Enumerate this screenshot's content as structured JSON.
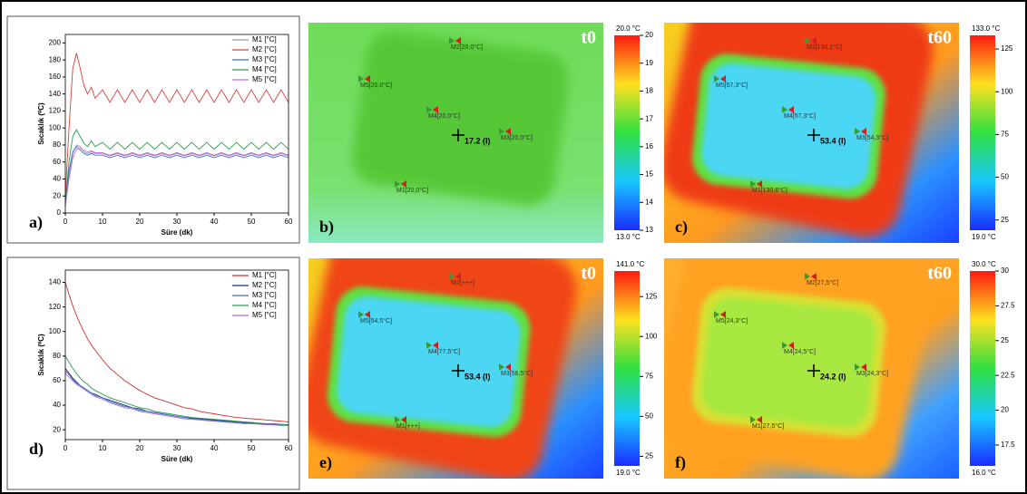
{
  "chart_data": [
    {
      "type": "line",
      "panel_label": "a)",
      "x_label": "Süre (dk)",
      "y_label": "Sıcaklık (⁰C)",
      "x": [
        0,
        1,
        2,
        3,
        4,
        5,
        6,
        7,
        8,
        10,
        12,
        14,
        16,
        18,
        20,
        22,
        24,
        26,
        28,
        30,
        32,
        34,
        36,
        38,
        40,
        42,
        44,
        46,
        48,
        50,
        52,
        54,
        56,
        58,
        60
      ],
      "xlim": [
        0,
        60
      ],
      "xticks": [
        0,
        10,
        20,
        30,
        40,
        50,
        60
      ],
      "ylim": [
        0,
        210
      ],
      "yticks": [
        0,
        20,
        40,
        60,
        80,
        100,
        120,
        140,
        160,
        180,
        200
      ],
      "legend": "upper right",
      "series": [
        {
          "name": "M1 [°C]",
          "color": "#9a8fb8",
          "values": [
            10,
            45,
            70,
            80,
            78,
            72,
            70,
            72,
            70,
            70,
            67,
            70,
            67,
            70,
            67,
            70,
            67,
            70,
            67,
            70,
            67,
            70,
            67,
            70,
            67,
            70,
            67,
            70,
            67,
            70,
            67,
            70,
            67,
            70,
            67
          ]
        },
        {
          "name": "M2 [°C]",
          "color": "#e0403a",
          "values": [
            20,
            100,
            170,
            188,
            170,
            150,
            140,
            148,
            135,
            145,
            130,
            145,
            130,
            145,
            130,
            145,
            130,
            145,
            130,
            145,
            130,
            145,
            130,
            145,
            130,
            145,
            130,
            145,
            130,
            145,
            130,
            145,
            130,
            145,
            130
          ]
        },
        {
          "name": "M3 [°C]",
          "color": "#3a6fd0",
          "values": [
            12,
            50,
            72,
            78,
            74,
            70,
            68,
            70,
            68,
            68,
            65,
            68,
            65,
            68,
            65,
            68,
            65,
            68,
            65,
            68,
            65,
            68,
            65,
            68,
            65,
            68,
            65,
            68,
            65,
            68,
            65,
            68,
            65,
            68,
            65
          ]
        },
        {
          "name": "M4 [°C]",
          "color": "#2aa050",
          "values": [
            15,
            60,
            90,
            98,
            90,
            82,
            78,
            85,
            78,
            83,
            75,
            83,
            75,
            83,
            75,
            83,
            75,
            83,
            75,
            83,
            75,
            83,
            75,
            83,
            75,
            83,
            75,
            83,
            75,
            83,
            75,
            83,
            75,
            83,
            75
          ]
        },
        {
          "name": "M5 [°C]",
          "color": "#c070d0",
          "values": [
            8,
            40,
            65,
            75,
            76,
            74,
            72,
            73,
            71,
            71,
            68,
            71,
            68,
            71,
            68,
            71,
            68,
            71,
            68,
            71,
            68,
            71,
            68,
            71,
            68,
            71,
            68,
            71,
            68,
            71,
            68,
            71,
            68,
            71,
            68
          ]
        }
      ]
    },
    {
      "type": "line",
      "panel_label": "d)",
      "x_label": "Süre (dk)",
      "y_label": "Sıcaklık (⁰C)",
      "x": [
        0,
        1,
        2,
        3,
        4,
        5,
        6,
        7,
        8,
        10,
        12,
        14,
        16,
        18,
        20,
        22,
        24,
        26,
        28,
        30,
        32,
        34,
        36,
        38,
        40,
        42,
        44,
        46,
        48,
        50,
        52,
        54,
        56,
        58,
        60
      ],
      "xlim": [
        0,
        60
      ],
      "xticks": [
        0,
        10,
        20,
        30,
        40,
        50,
        60
      ],
      "ylim": [
        12,
        150
      ],
      "yticks": [
        20,
        40,
        60,
        80,
        100,
        120,
        140
      ],
      "legend": "upper right",
      "series": [
        {
          "name": "M1 [°C]",
          "color": "#d03030",
          "values": [
            140,
            130,
            121,
            113,
            106,
            100,
            94,
            89,
            85,
            77,
            70,
            65,
            60,
            56,
            52,
            49,
            46,
            44,
            42,
            40,
            38,
            37,
            35,
            34,
            33,
            32,
            31,
            30,
            29.5,
            29,
            28.5,
            28,
            27.5,
            27,
            26.5
          ]
        },
        {
          "name": "M2 [°C]",
          "color": "#203070",
          "values": [
            70,
            66,
            62,
            59,
            56,
            54,
            52,
            50,
            49,
            46,
            44,
            42,
            40,
            38,
            37,
            35,
            34,
            33,
            32,
            31,
            30,
            29.5,
            29,
            28.5,
            28,
            27.5,
            27,
            26.5,
            26,
            25.5,
            25,
            25,
            24.5,
            24,
            24
          ]
        },
        {
          "name": "M3 [°C]",
          "color": "#3a70c8",
          "values": [
            68,
            65,
            61,
            58,
            56,
            54,
            52,
            50,
            48,
            46,
            43,
            41,
            39,
            38,
            36,
            35,
            34,
            33,
            32,
            31,
            30,
            29,
            28.5,
            28,
            27.5,
            27,
            26.5,
            26,
            25.5,
            25,
            25,
            24.5,
            24,
            24,
            23.5
          ]
        },
        {
          "name": "M4 [°C]",
          "color": "#2a9a50",
          "values": [
            80,
            75,
            70,
            66,
            62,
            59,
            57,
            54,
            52,
            49,
            46,
            44,
            42,
            40,
            38,
            37,
            35,
            34,
            33,
            32,
            31,
            30,
            29.5,
            29,
            28.5,
            28,
            27.5,
            27,
            26.5,
            26,
            25.5,
            25,
            25,
            24.5,
            24
          ]
        },
        {
          "name": "M5 [°C]",
          "color": "#a070d0",
          "values": [
            66,
            63,
            60,
            57,
            55,
            53,
            51,
            49,
            47,
            45,
            42,
            40,
            38,
            37,
            35,
            34,
            33,
            32,
            31,
            30,
            29,
            28.5,
            28,
            27.5,
            27,
            26.5,
            26,
            25.5,
            25,
            25,
            24.5,
            24,
            24,
            23.5,
            23.5
          ]
        }
      ]
    }
  ],
  "panels": [
    {
      "label": "b)",
      "time": "t0",
      "cursor": "17.2 (I)",
      "markers": [
        "M2[20,0°C]",
        "M5[20,0°C]",
        "M4[20,0°C]",
        "M3[20,0°C]",
        "M1[20,0°C]"
      ],
      "colorbar": {
        "max": {
          "value": 20,
          "label": "20.0 °C"
        },
        "min": {
          "value": 13,
          "label": "13.0 °C"
        },
        "ticks": [
          13,
          14,
          15,
          16,
          17,
          18,
          19,
          20
        ]
      }
    },
    {
      "label": "c)",
      "time": "t60",
      "cursor": "53.4 (I)",
      "markers": [
        "M2[130,1°C]",
        "M5[57,3°C]",
        "M4[57,3°C]",
        "M3[54,3°C]",
        "M1[130,6°C]"
      ],
      "colorbar": {
        "max": {
          "value": 133,
          "label": "133.0 °C"
        },
        "min": {
          "value": 19,
          "label": "19.0 °C"
        },
        "ticks": [
          25,
          50,
          75,
          100,
          125
        ]
      }
    },
    {
      "label": "e)",
      "time": "t0",
      "cursor": "53.4 (I)",
      "markers": [
        "M2[+++]",
        "M5[54,5°C]",
        "M4[77,5°C]",
        "M3[56,5°C]",
        "M1[+++]"
      ],
      "colorbar": {
        "max": {
          "value": 141,
          "label": "141.0 °C"
        },
        "min": {
          "value": 19,
          "label": "19.0 °C"
        },
        "ticks": [
          25,
          50,
          75,
          100,
          125
        ]
      }
    },
    {
      "label": "f)",
      "time": "t60",
      "cursor": "24.2 (I)",
      "markers": [
        "M2[27,5°C]",
        "M5[24,3°C]",
        "M4[24,5°C]",
        "M3[24,3°C]",
        "M1[27,5°C]"
      ],
      "colorbar": {
        "max": {
          "value": 30,
          "label": "30.0 °C"
        },
        "min": {
          "value": 16,
          "label": "16.0 °C"
        },
        "ticks": [
          17.5,
          20,
          22.5,
          25,
          27.5,
          30
        ]
      }
    }
  ]
}
